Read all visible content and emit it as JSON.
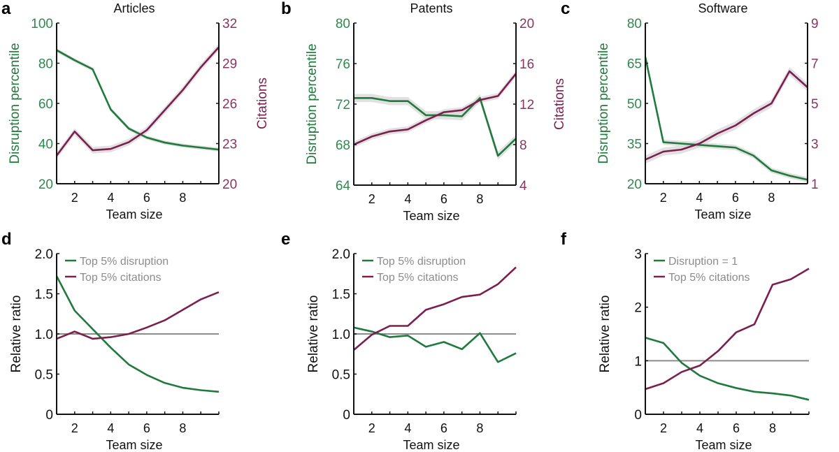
{
  "colors": {
    "disruption": "#1f7a3c",
    "citations": "#7b1f4f",
    "disruption_tick": "#2e8a4e",
    "citations_tick": "#8a3560",
    "band": "#d9d9d9",
    "reference": "#8c8c8c",
    "legend_text": "#8c8c8c"
  },
  "chart_data": [
    {
      "panel": "a",
      "type": "line",
      "title": "Articles",
      "xlabel": "Team size",
      "ylabel": "Disruption percentile",
      "y2label": "Citations",
      "xlim": [
        1,
        10
      ],
      "xticks": [
        2,
        4,
        6,
        8
      ],
      "ylim": [
        20,
        100
      ],
      "yticks": [
        "20",
        "40",
        "60",
        "80",
        "100"
      ],
      "y2lim": [
        20,
        32
      ],
      "y2ticks": [
        "20",
        "23",
        "26",
        "29",
        "32"
      ],
      "x": [
        1,
        2,
        3,
        4,
        5,
        6,
        7,
        8,
        9,
        10
      ],
      "series": [
        {
          "axis": "left",
          "color": "disruption",
          "values": [
            86.5,
            81.5,
            77,
            57,
            47.5,
            43,
            40.5,
            39,
            38,
            37
          ],
          "band": 1
        },
        {
          "axis": "right",
          "color": "citations",
          "values": [
            22.1,
            23.9,
            22.5,
            22.6,
            23.1,
            24.0,
            25.5,
            27.0,
            28.7,
            30.2
          ],
          "band": 0.25
        }
      ]
    },
    {
      "panel": "b",
      "type": "line",
      "title": "Patents",
      "xlabel": "Team size",
      "ylabel": "Disruption percentile",
      "y2label": "Citations",
      "xlim": [
        1,
        10
      ],
      "xticks": [
        2,
        4,
        6,
        8
      ],
      "ylim": [
        64,
        80
      ],
      "yticks": [
        "64",
        "68",
        "72",
        "76",
        "80"
      ],
      "y2lim": [
        4,
        20
      ],
      "y2ticks": [
        "4",
        "8",
        "12",
        "16",
        "20"
      ],
      "x": [
        1,
        2,
        3,
        4,
        5,
        6,
        7,
        8,
        9,
        10
      ],
      "series": [
        {
          "axis": "left",
          "color": "disruption",
          "values": [
            72.6,
            72.6,
            72.3,
            72.3,
            70.9,
            70.9,
            70.8,
            72.6,
            66.9,
            68.6
          ],
          "band": 0.4
        },
        {
          "axis": "right",
          "color": "citations",
          "values": [
            8.0,
            8.8,
            9.3,
            9.5,
            10.4,
            11.2,
            11.4,
            12.4,
            12.8,
            15.0
          ],
          "band": 0.3
        }
      ]
    },
    {
      "panel": "c",
      "type": "line",
      "title": "Software",
      "xlabel": "Team size",
      "ylabel": "Disruption percentile",
      "y2label": "Citations",
      "xlim": [
        1,
        10
      ],
      "xticks": [
        2,
        4,
        6,
        8
      ],
      "ylim": [
        20,
        80
      ],
      "yticks": [
        "20",
        "35",
        "50",
        "65",
        "80"
      ],
      "y2lim": [
        1,
        9
      ],
      "y2ticks": [
        "1",
        "3",
        "5",
        "7",
        "9"
      ],
      "x": [
        1,
        2,
        3,
        4,
        5,
        6,
        7,
        8,
        9,
        10
      ],
      "series": [
        {
          "axis": "left",
          "color": "disruption",
          "values": [
            67.3,
            35.5,
            35,
            34.5,
            34,
            33.5,
            30.5,
            25,
            23,
            21.5
          ],
          "band": 1
        },
        {
          "axis": "right",
          "color": "citations",
          "values": [
            2.2,
            2.6,
            2.7,
            3.0,
            3.5,
            3.9,
            4.5,
            5.0,
            6.6,
            5.8
          ],
          "band": 0.2
        }
      ]
    },
    {
      "panel": "d",
      "type": "line",
      "title": "",
      "xlabel": "Team size",
      "ylabel": "Relative ratio",
      "xlim": [
        1,
        10
      ],
      "xticks": [
        2,
        4,
        6,
        8
      ],
      "ylim": [
        0,
        2
      ],
      "yticks": [
        "0",
        "0.5",
        "1.0",
        "1.5",
        "2.0"
      ],
      "reference": 1,
      "x": [
        1,
        2,
        3,
        4,
        5,
        6,
        7,
        8,
        9,
        10
      ],
      "series": [
        {
          "name": "Top 5% disruption",
          "axis": "left",
          "color": "disruption",
          "values": [
            1.72,
            1.29,
            1.06,
            0.83,
            0.62,
            0.49,
            0.39,
            0.33,
            0.3,
            0.28
          ]
        },
        {
          "name": "Top 5% citations",
          "axis": "left",
          "color": "citations",
          "values": [
            0.94,
            1.03,
            0.94,
            0.96,
            1.0,
            1.08,
            1.17,
            1.3,
            1.43,
            1.52
          ]
        }
      ]
    },
    {
      "panel": "e",
      "type": "line",
      "title": "",
      "xlabel": "Team size",
      "ylabel": "Relative ratio",
      "xlim": [
        1,
        10
      ],
      "xticks": [
        2,
        4,
        6,
        8
      ],
      "ylim": [
        0,
        2
      ],
      "yticks": [
        "0",
        "0.5",
        "1.0",
        "1.5",
        "2.0"
      ],
      "reference": 1,
      "x": [
        1,
        2,
        3,
        4,
        5,
        6,
        7,
        8,
        9,
        10
      ],
      "series": [
        {
          "name": "Top 5% disruption",
          "axis": "left",
          "color": "disruption",
          "values": [
            1.08,
            1.03,
            0.96,
            0.98,
            0.84,
            0.9,
            0.81,
            1.01,
            0.65,
            0.76
          ]
        },
        {
          "name": "Top 5% citations",
          "axis": "left",
          "color": "citations",
          "values": [
            0.8,
            0.99,
            1.1,
            1.1,
            1.3,
            1.37,
            1.46,
            1.49,
            1.62,
            1.83
          ]
        }
      ]
    },
    {
      "panel": "f",
      "type": "line",
      "title": "",
      "xlabel": "Team size",
      "ylabel": "Relative ratio",
      "xlim": [
        1,
        10
      ],
      "xticks": [
        2,
        4,
        6,
        8
      ],
      "ylim": [
        0,
        3
      ],
      "yticks": [
        "0",
        "1",
        "2",
        "3"
      ],
      "reference": 1,
      "x": [
        1,
        2,
        3,
        4,
        5,
        6,
        7,
        8,
        9,
        10
      ],
      "series": [
        {
          "name": "Disruption = 1",
          "axis": "left",
          "color": "disruption",
          "values": [
            1.43,
            1.33,
            0.96,
            0.72,
            0.58,
            0.49,
            0.42,
            0.39,
            0.35,
            0.27
          ]
        },
        {
          "name": "Top 5% citations",
          "axis": "left",
          "color": "citations",
          "values": [
            0.47,
            0.58,
            0.79,
            0.91,
            1.18,
            1.53,
            1.68,
            2.42,
            2.52,
            2.72
          ]
        }
      ]
    }
  ]
}
